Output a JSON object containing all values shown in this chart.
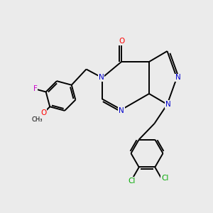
{
  "bg_color": "#ebebeb",
  "atom_colors": {
    "C": "#000000",
    "N": "#0000cc",
    "O": "#ff0000",
    "F": "#cc00cc",
    "Cl": "#00aa00"
  },
  "bond_color": "#000000",
  "figsize": [
    3.0,
    3.0
  ],
  "dpi": 100,
  "lw": 1.4,
  "fs": 7.5
}
